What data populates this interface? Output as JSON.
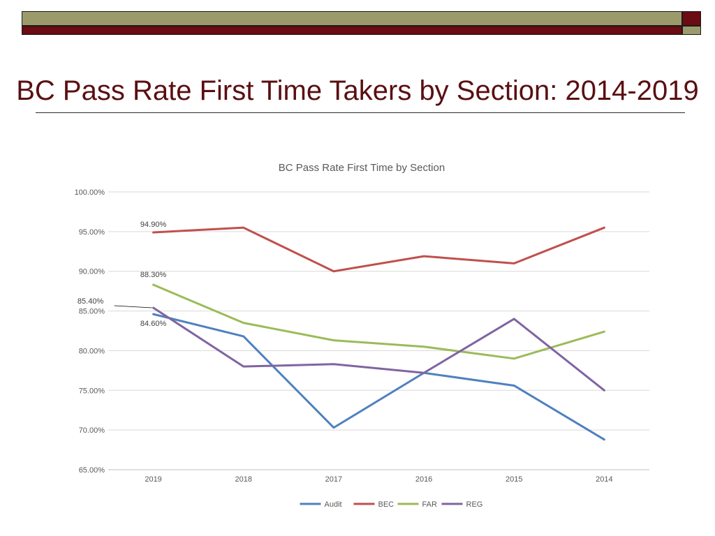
{
  "slide": {
    "title": "BC Pass Rate First Time Takers by Section: 2014-2019",
    "colors": {
      "accent_red": "#6b0b12",
      "accent_olive": "#9b9a6b",
      "title_text": "#5a0f12"
    }
  },
  "chart_data": {
    "type": "line",
    "title": "BC Pass Rate First Time by Section",
    "xlabel": "",
    "ylabel": "",
    "categories": [
      "2019",
      "2018",
      "2017",
      "2016",
      "2015",
      "2014"
    ],
    "ylim": [
      0.65,
      1.0
    ],
    "yticks": [
      "100.00%",
      "95.00%",
      "90.00%",
      "85.00%",
      "80.00%",
      "75.00%",
      "70.00%",
      "65.00%"
    ],
    "grid": true,
    "legend_position": "bottom",
    "series": [
      {
        "name": "Audit",
        "color": "#4f81bd",
        "values": [
          0.846,
          0.818,
          0.703,
          0.772,
          0.756,
          0.688
        ]
      },
      {
        "name": "BEC",
        "color": "#c0504d",
        "values": [
          0.949,
          0.955,
          0.9,
          0.919,
          0.91,
          0.955
        ]
      },
      {
        "name": "FAR",
        "color": "#9bbb59",
        "values": [
          0.883,
          0.835,
          0.813,
          0.805,
          0.79,
          0.824
        ]
      },
      {
        "name": "REG",
        "color": "#8064a2",
        "values": [
          0.854,
          0.78,
          0.783,
          0.772,
          0.84,
          0.75
        ]
      }
    ],
    "data_labels": [
      {
        "series": "BEC",
        "index": 0,
        "text": "94.90%"
      },
      {
        "series": "FAR",
        "index": 0,
        "text": "88.30%"
      },
      {
        "series": "REG",
        "index": 0,
        "text": "85.40%"
      },
      {
        "series": "Audit",
        "index": 0,
        "text": "84.60%"
      }
    ]
  }
}
